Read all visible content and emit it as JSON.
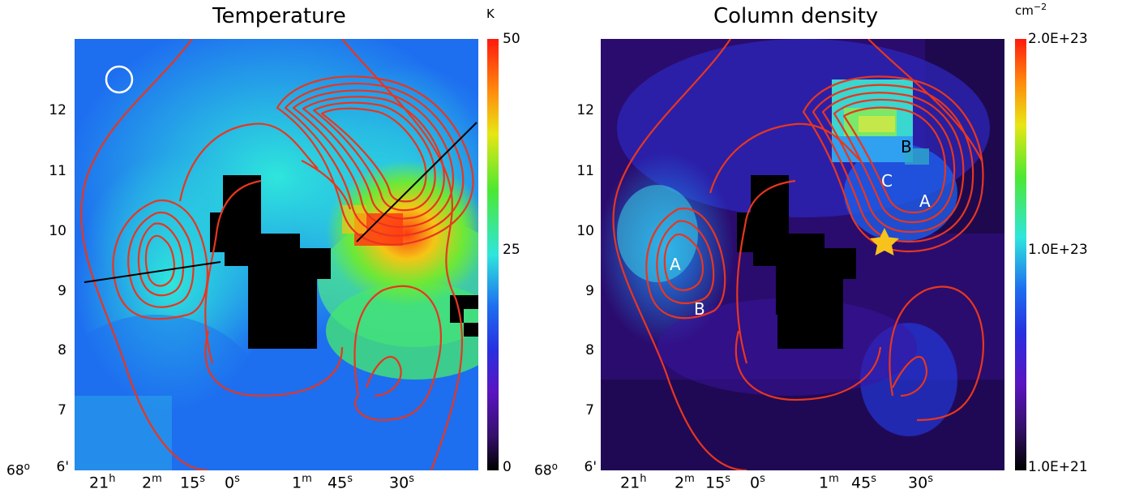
{
  "left_panel": {
    "title": "Temperature",
    "colorbar_unit": "K",
    "colorbar_ticks": [
      "50",
      "25",
      "0"
    ]
  },
  "right_panel": {
    "title": "Column density",
    "colorbar_unit_base": "cm",
    "colorbar_unit_exp": "−2",
    "colorbar_ticks": [
      "2.0E+23",
      "1.0E+23",
      "1.0E+21"
    ],
    "labels": [
      "B",
      "C",
      "A",
      "A",
      "B"
    ]
  },
  "y_axis": {
    "ticks": [
      "12",
      "11",
      "10",
      "9",
      "8",
      "7",
      "6'"
    ],
    "corner_deg": "68",
    "corner_sup": "o"
  },
  "x_axis": {
    "ticks": [
      {
        "v": "21",
        "u": "h"
      },
      {
        "v": "2",
        "u": "m"
      },
      {
        "v": "15",
        "u": "s"
      },
      {
        "v": "0",
        "u": "s"
      },
      {
        "v": "1",
        "u": "m"
      },
      {
        "v": "45",
        "u": "s"
      },
      {
        "v": "30",
        "u": "s"
      }
    ]
  },
  "colors": {
    "contour": "#e8361e",
    "star": "#f7c21b",
    "beam": "#ffffff",
    "cut": "#000000"
  },
  "icons": {
    "beam": "beam-circle",
    "star": "star-marker"
  }
}
